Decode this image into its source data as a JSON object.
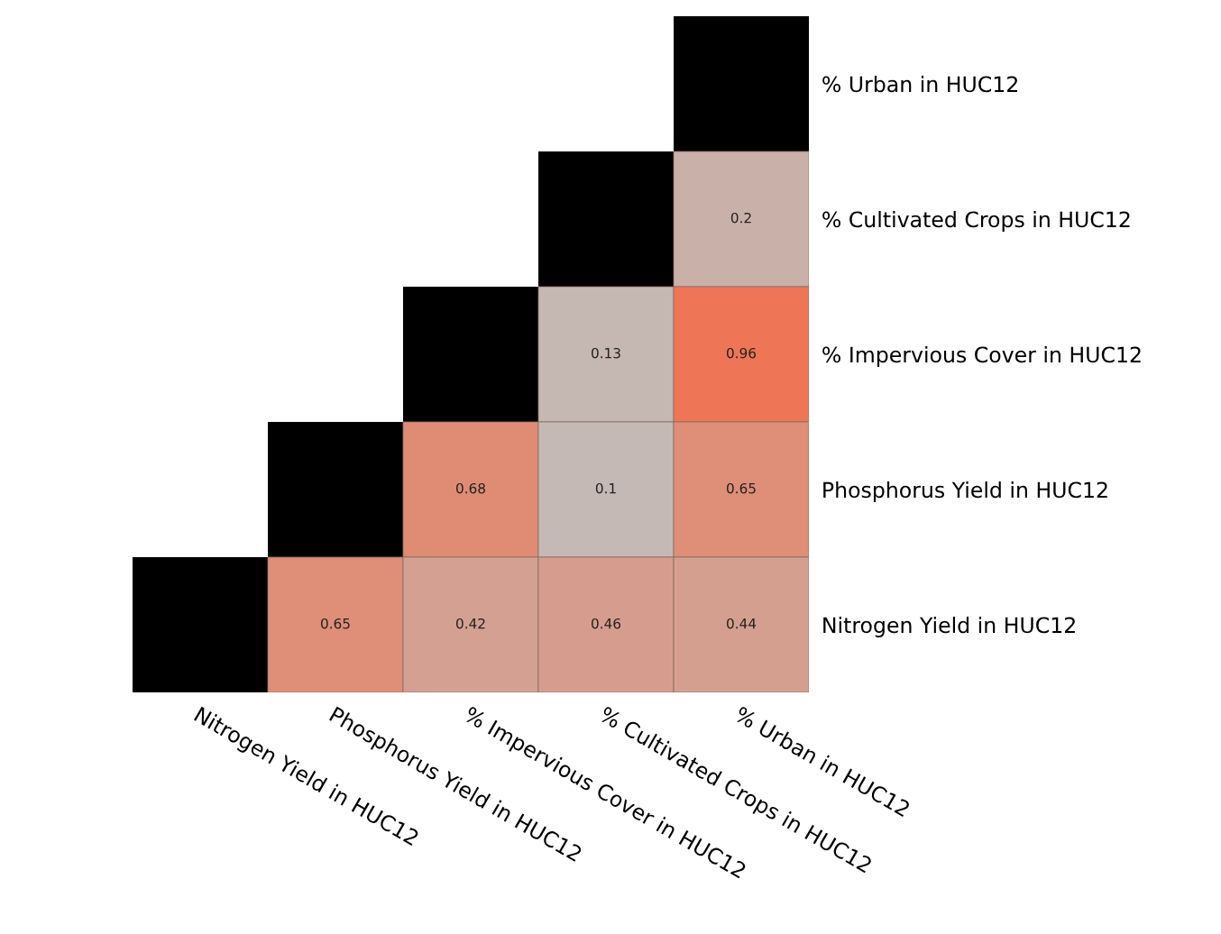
{
  "chart_data": {
    "type": "heatmap",
    "categories": [
      "Nitrogen Yield in HUC12",
      "Phosphorus Yield in HUC12",
      "% Impervious Cover in HUC12",
      "% Cultivated Crops in HUC12",
      "% Urban in HUC12"
    ],
    "y_categories": [
      "% Urban in HUC12",
      "% Cultivated Crops in HUC12",
      "% Impervious Cover in HUC12",
      "Phosphorus Yield in HUC12",
      "Nitrogen Yield in HUC12"
    ],
    "data_labels": true,
    "cells": [
      [
        null,
        null,
        null,
        null,
        null
      ],
      [
        null,
        null,
        null,
        null,
        0.2
      ],
      [
        null,
        null,
        null,
        0.13,
        0.96
      ],
      [
        null,
        null,
        0.68,
        0.1,
        0.65
      ],
      [
        null,
        0.65,
        0.42,
        0.46,
        0.44
      ]
    ]
  }
}
